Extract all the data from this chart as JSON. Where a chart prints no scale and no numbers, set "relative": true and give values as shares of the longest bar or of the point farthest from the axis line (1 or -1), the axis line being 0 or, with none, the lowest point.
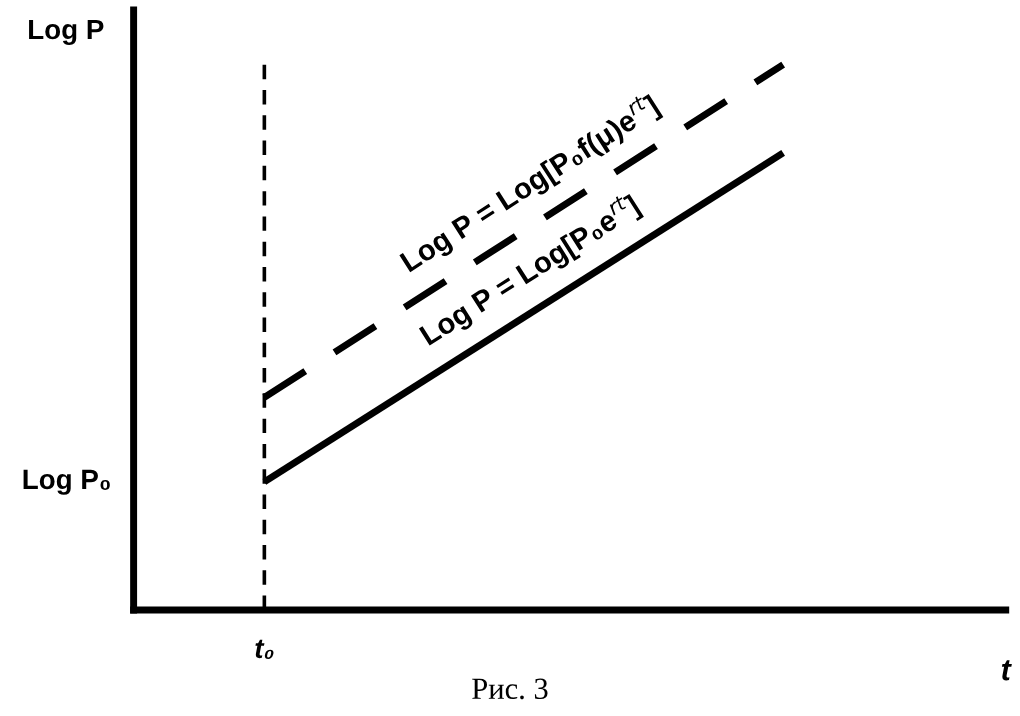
{
  "chart_data": {
    "type": "line",
    "relative": true,
    "xlabel": "t",
    "ylabel": "Log P",
    "categories": [
      null,
      null
    ],
    "series": [
      {
        "name": "Log P = Log[P₀f(μ)e$^{rt}$]",
        "color": "#000000",
        "line_style": "dashed",
        "values": [
          0.39,
          1.0
        ]
      },
      {
        "name": "Log P = Log[P₀e$^{rt}$]",
        "color": "#000000",
        "line_style": "solid",
        "values": [
          0.235,
          0.838
        ]
      }
    ],
    "ref_lines": [
      {
        "axis": "x",
        "label": "t₀",
        "color": "#000000",
        "line_style": "dashed"
      }
    ],
    "annotations": [
      "Log P₀",
      "Рис. 3"
    ],
    "marker": "none"
  }
}
